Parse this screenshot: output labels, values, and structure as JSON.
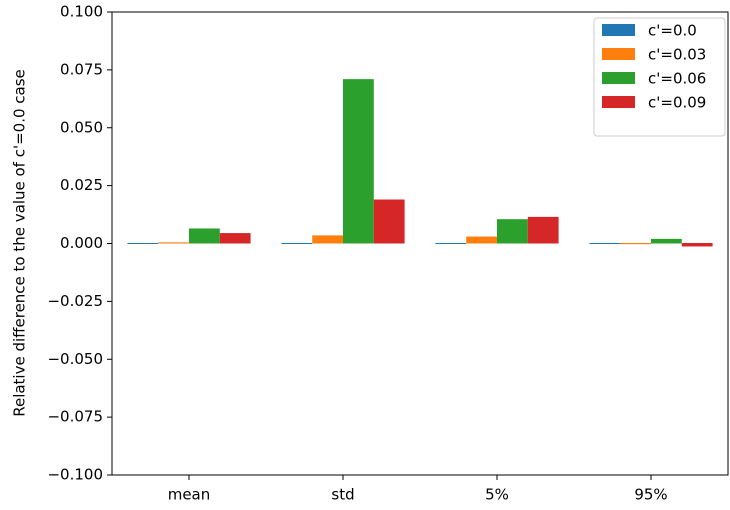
{
  "chart_data": {
    "type": "bar",
    "ylabel": "Relative difference to the value of c'=0.0 case",
    "categories": [
      "mean",
      "std",
      "5%",
      "95%"
    ],
    "series": [
      {
        "name": "c'=0.0",
        "color": "#1f77b4",
        "values": [
          0,
          0,
          0,
          0
        ]
      },
      {
        "name": "c'=0.03",
        "color": "#ff7f0e",
        "values": [
          0.0005,
          0.0035,
          0.003,
          -0.0005
        ]
      },
      {
        "name": "c'=0.06",
        "color": "#2ca02c",
        "values": [
          0.0065,
          0.071,
          0.0105,
          0.002
        ]
      },
      {
        "name": "c'=0.09",
        "color": "#d62728",
        "values": [
          0.0045,
          0.019,
          0.0115,
          -0.0015
        ]
      }
    ],
    "ylim": [
      -0.1,
      0.1
    ],
    "yticks": [
      {
        "value": -0.1,
        "label": "−0.100"
      },
      {
        "value": -0.075,
        "label": "−0.075"
      },
      {
        "value": -0.05,
        "label": "−0.050"
      },
      {
        "value": -0.025,
        "label": "−0.025"
      },
      {
        "value": 0,
        "label": "0.000"
      },
      {
        "value": 0.025,
        "label": "0.025"
      },
      {
        "value": 0.05,
        "label": "0.050"
      },
      {
        "value": 0.075,
        "label": "0.075"
      },
      {
        "value": 0.1,
        "label": "0.100"
      }
    ],
    "legend": "upper right"
  }
}
